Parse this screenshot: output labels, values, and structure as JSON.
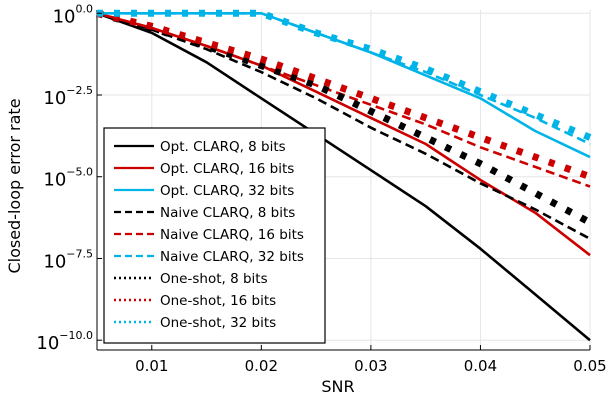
{
  "chart_data": {
    "type": "line",
    "title": "",
    "xlabel": "SNR",
    "ylabel": "Closed-loop error rate",
    "xlim": [
      0.005,
      0.05
    ],
    "ylim": [
      -10.3,
      0.1
    ],
    "y_scale": "log10",
    "grid": true,
    "legend_position": "bottom-left",
    "x_ticks": [
      {
        "value": 0.01,
        "label": "0.01"
      },
      {
        "value": 0.02,
        "label": "0.02"
      },
      {
        "value": 0.03,
        "label": "0.03"
      },
      {
        "value": 0.04,
        "label": "0.04"
      },
      {
        "value": 0.05,
        "label": "0.05"
      }
    ],
    "y_ticks": [
      {
        "value": 0.0,
        "base": "10",
        "exp": "0.0"
      },
      {
        "value": -2.5,
        "base": "10",
        "exp": "−2.5"
      },
      {
        "value": -5.0,
        "base": "10",
        "exp": "−5.0"
      },
      {
        "value": -7.5,
        "base": "10",
        "exp": "−7.5"
      },
      {
        "value": -10.0,
        "base": "10",
        "exp": "−10.0"
      }
    ],
    "series": [
      {
        "name": "Opt. CLARQ, 8 bits",
        "style": "solid",
        "color": "#000000",
        "x": [
          0.005,
          0.01,
          0.015,
          0.02,
          0.025,
          0.03,
          0.035,
          0.04,
          0.045,
          0.05
        ],
        "y": [
          0.0,
          -0.6,
          -1.5,
          -2.6,
          -3.7,
          -4.8,
          -5.9,
          -7.2,
          -8.6,
          -10.0
        ]
      },
      {
        "name": "Opt. CLARQ, 16 bits",
        "style": "solid",
        "color": "#cc0000",
        "x": [
          0.005,
          0.01,
          0.015,
          0.02,
          0.025,
          0.03,
          0.035,
          0.04,
          0.045,
          0.05
        ],
        "y": [
          0.0,
          -0.45,
          -1.0,
          -1.6,
          -2.4,
          -3.2,
          -4.0,
          -5.1,
          -6.1,
          -7.4
        ]
      },
      {
        "name": "Opt. CLARQ, 32 bits",
        "style": "solid",
        "color": "#00b4e8",
        "x": [
          0.005,
          0.01,
          0.015,
          0.02,
          0.025,
          0.03,
          0.035,
          0.04,
          0.045,
          0.05
        ],
        "y": [
          0.0,
          0.0,
          0.0,
          0.0,
          -0.6,
          -1.2,
          -1.9,
          -2.6,
          -3.6,
          -4.4
        ]
      },
      {
        "name": "Naive CLARQ, 8 bits",
        "style": "dashed",
        "color": "#000000",
        "x": [
          0.005,
          0.01,
          0.015,
          0.02,
          0.025,
          0.03,
          0.035,
          0.04,
          0.045,
          0.05
        ],
        "y": [
          0.0,
          -0.5,
          -1.1,
          -1.8,
          -2.6,
          -3.5,
          -4.3,
          -5.2,
          -6.0,
          -6.9
        ]
      },
      {
        "name": "Naive CLARQ, 16 bits",
        "style": "dashed",
        "color": "#cc0000",
        "x": [
          0.005,
          0.01,
          0.015,
          0.02,
          0.025,
          0.03,
          0.035,
          0.04,
          0.045,
          0.05
        ],
        "y": [
          0.0,
          -0.45,
          -1.0,
          -1.6,
          -2.2,
          -2.8,
          -3.4,
          -4.1,
          -4.7,
          -5.3
        ]
      },
      {
        "name": "Naive CLARQ, 32 bits",
        "style": "dashed",
        "color": "#00b4e8",
        "x": [
          0.005,
          0.01,
          0.015,
          0.02,
          0.025,
          0.03,
          0.035,
          0.04,
          0.045,
          0.05
        ],
        "y": [
          0.0,
          0.0,
          0.0,
          0.0,
          -0.6,
          -1.2,
          -1.8,
          -2.5,
          -3.2,
          -4.0
        ]
      },
      {
        "name": "One-shot, 8 bits",
        "style": "dotted",
        "color": "#000000",
        "x": [
          0.005,
          0.01,
          0.015,
          0.02,
          0.025,
          0.03,
          0.035,
          0.04,
          0.045,
          0.05
        ],
        "y": [
          0.0,
          -0.45,
          -1.0,
          -1.6,
          -2.2,
          -3.0,
          -3.8,
          -4.6,
          -5.5,
          -6.4
        ]
      },
      {
        "name": "One-shot, 16 bits",
        "style": "dotted",
        "color": "#cc0000",
        "x": [
          0.005,
          0.01,
          0.015,
          0.02,
          0.025,
          0.03,
          0.035,
          0.04,
          0.045,
          0.05
        ],
        "y": [
          0.0,
          -0.4,
          -0.9,
          -1.4,
          -2.0,
          -2.6,
          -3.2,
          -3.8,
          -4.4,
          -5.0
        ]
      },
      {
        "name": "One-shot, 32 bits",
        "style": "dotted",
        "color": "#00b4e8",
        "x": [
          0.005,
          0.01,
          0.015,
          0.02,
          0.025,
          0.03,
          0.035,
          0.04,
          0.045,
          0.05
        ],
        "y": [
          0.0,
          0.0,
          0.0,
          0.0,
          -0.6,
          -1.1,
          -1.7,
          -2.4,
          -3.1,
          -3.8
        ]
      }
    ]
  }
}
